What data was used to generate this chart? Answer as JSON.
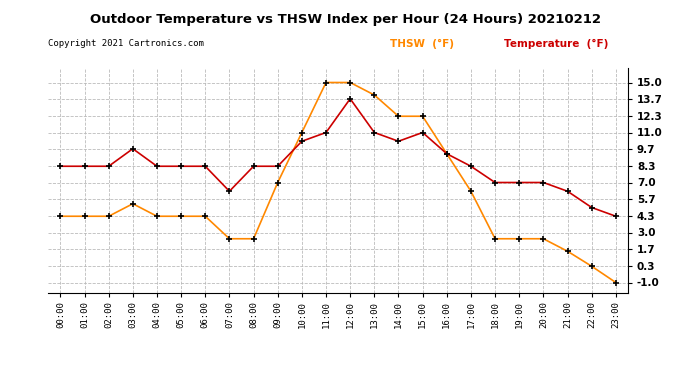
{
  "title": "Outdoor Temperature vs THSW Index per Hour (24 Hours) 20210212",
  "copyright": "Copyright 2021 Cartronics.com",
  "hours": [
    "00:00",
    "01:00",
    "02:00",
    "03:00",
    "04:00",
    "05:00",
    "06:00",
    "07:00",
    "08:00",
    "09:00",
    "10:00",
    "11:00",
    "12:00",
    "13:00",
    "14:00",
    "15:00",
    "16:00",
    "17:00",
    "18:00",
    "19:00",
    "20:00",
    "21:00",
    "22:00",
    "23:00"
  ],
  "temperature": [
    8.3,
    8.3,
    8.3,
    9.7,
    8.3,
    8.3,
    8.3,
    6.3,
    8.3,
    8.3,
    10.3,
    11.0,
    13.7,
    11.0,
    10.3,
    11.0,
    9.3,
    8.3,
    7.0,
    7.0,
    7.0,
    6.3,
    5.0,
    4.3
  ],
  "thsw": [
    4.3,
    4.3,
    4.3,
    5.3,
    4.3,
    4.3,
    4.3,
    2.5,
    2.5,
    7.0,
    11.0,
    15.0,
    15.0,
    14.0,
    12.3,
    12.3,
    9.3,
    6.3,
    2.5,
    2.5,
    2.5,
    1.5,
    0.3,
    -1.0
  ],
  "temp_color": "#cc0000",
  "thsw_color": "#ff8800",
  "marker_color": "#000000",
  "ylim_min": -1.8,
  "ylim_max": 16.2,
  "yticks": [
    -1.0,
    0.3,
    1.7,
    3.0,
    4.3,
    5.7,
    7.0,
    8.3,
    9.7,
    11.0,
    12.3,
    13.7,
    15.0
  ],
  "bg_color": "#ffffff",
  "grid_color": "#bbbbbb",
  "legend_thsw": "THSW  (°F)",
  "legend_temp": "Temperature  (°F)"
}
